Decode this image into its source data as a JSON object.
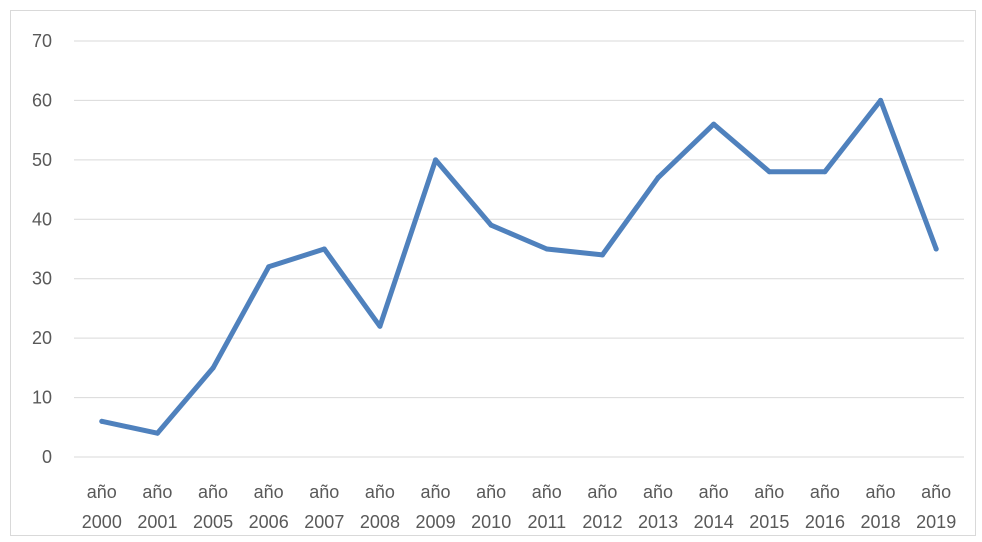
{
  "chart_data": {
    "type": "line",
    "title": "",
    "xlabel": "",
    "ylabel": "",
    "categories": [
      [
        "año",
        "2000"
      ],
      [
        "año",
        "2001"
      ],
      [
        "año",
        "2005"
      ],
      [
        "año",
        "2006"
      ],
      [
        "año",
        "2007"
      ],
      [
        "año",
        "2008"
      ],
      [
        "año",
        "2009"
      ],
      [
        "año",
        "2010"
      ],
      [
        "año",
        "2011"
      ],
      [
        "año",
        "2012"
      ],
      [
        "año",
        "2013"
      ],
      [
        "año",
        "2014"
      ],
      [
        "año",
        "2015"
      ],
      [
        "año",
        "2016"
      ],
      [
        "año",
        "2018"
      ],
      [
        "año",
        "2019"
      ]
    ],
    "series": [
      {
        "values": [
          6,
          4,
          15,
          32,
          35,
          22,
          50,
          39,
          35,
          34,
          47,
          56,
          48,
          48,
          60,
          35
        ],
        "color": "#4f81bd"
      }
    ],
    "ylim": [
      0,
      70
    ],
    "yticks": [
      0,
      10,
      20,
      30,
      40,
      50,
      60,
      70
    ],
    "grid": true,
    "legend": "none"
  }
}
